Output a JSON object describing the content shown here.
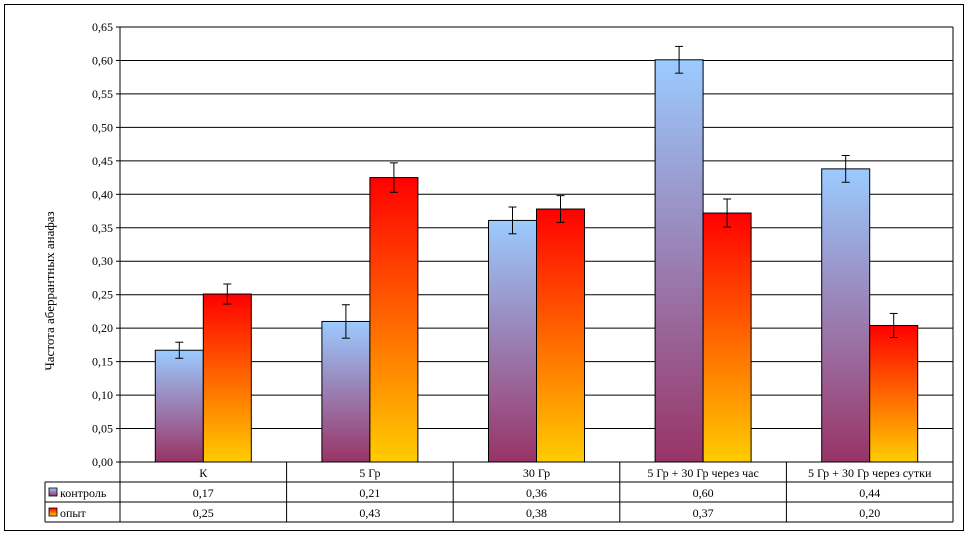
{
  "chart_data": {
    "type": "bar",
    "ylabel": "Частота аберрантных анафаз",
    "xlabel": "",
    "ylim": [
      0,
      0.65
    ],
    "y_ticks": [
      "0,00",
      "0,05",
      "0,10",
      "0,15",
      "0,20",
      "0,25",
      "0,30",
      "0,35",
      "0,40",
      "0,45",
      "0,50",
      "0,55",
      "0,60",
      "0,65"
    ],
    "grid": true,
    "legend": "data-table",
    "categories": [
      "К",
      "5 Гр",
      "30 Гр",
      "5 Гр + 30 Гр через час",
      "5 Гр + 30 Гр через сутки"
    ],
    "series": [
      {
        "name": "контроль",
        "values": [
          0.167,
          0.21,
          0.361,
          0.601,
          0.438
        ],
        "error": [
          0.012,
          0.025,
          0.02,
          0.02,
          0.02
        ],
        "table_labels": [
          "0,17",
          "0,21",
          "0,36",
          "0,60",
          "0,44"
        ],
        "colors": [
          "#9bcbff",
          "#993366"
        ]
      },
      {
        "name": "опыт",
        "values": [
          0.251,
          0.425,
          0.378,
          0.372,
          0.204
        ],
        "error": [
          0.015,
          0.022,
          0.02,
          0.021,
          0.018
        ],
        "table_labels": [
          "0,25",
          "0,43",
          "0,38",
          "0,37",
          "0,20"
        ],
        "colors": [
          "#ff0000",
          "#ffcc00"
        ]
      }
    ]
  }
}
